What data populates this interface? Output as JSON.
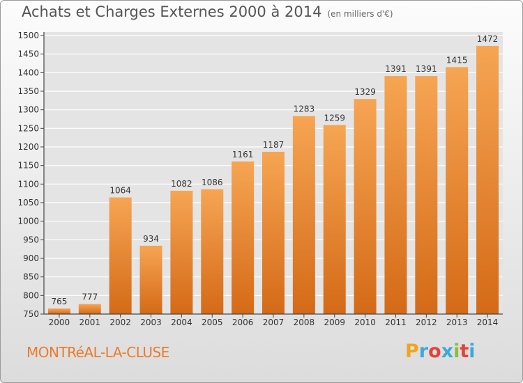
{
  "header": {
    "title": "Achats et Charges Externes 2000 à 2014",
    "subtitle": "(en milliers d'€)"
  },
  "footer": {
    "commune": "MONTRéAL-LA-CLUSE",
    "logo_letters": [
      "P",
      "r",
      "o",
      "x",
      "i",
      "t",
      "i"
    ],
    "logo_colors": [
      "#f0a61c",
      "#3aa9dc",
      "#e5403a",
      "#3aa9dc",
      "#8cbf3f",
      "#e5403a",
      "#3aa9dc"
    ]
  },
  "colors": {
    "bar_light": "#f6a553",
    "bar_dark": "#d46a17",
    "axis": "#444444",
    "grid": "#ffffff"
  },
  "chart_data": {
    "type": "bar",
    "categories": [
      "2000",
      "2001",
      "2002",
      "2003",
      "2004",
      "2005",
      "2006",
      "2007",
      "2008",
      "2009",
      "2010",
      "2011",
      "2012",
      "2013",
      "2014"
    ],
    "values": [
      765,
      777,
      1064,
      934,
      1082,
      1086,
      1161,
      1187,
      1283,
      1259,
      1329,
      1391,
      1391,
      1415,
      1472
    ],
    "data_labels": [
      "765",
      "777",
      "1064",
      "934",
      "1082",
      "1086",
      "1161",
      "1187",
      "1283",
      "1259",
      "1329",
      "1391",
      "1391",
      "1415",
      "1472"
    ],
    "y_ticks": [
      750,
      800,
      850,
      900,
      950,
      1000,
      1050,
      1100,
      1150,
      1200,
      1250,
      1300,
      1350,
      1400,
      1450,
      1500
    ],
    "ylim": [
      750,
      1500
    ],
    "grid": true,
    "legend": "none"
  }
}
